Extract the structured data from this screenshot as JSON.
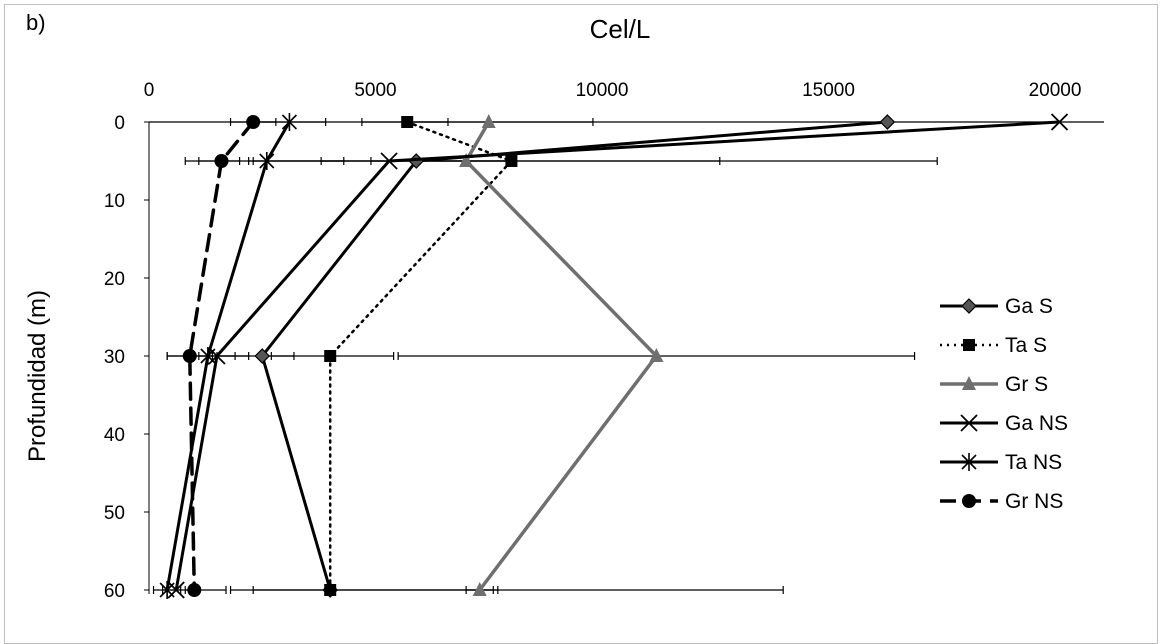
{
  "panel_label": "b)",
  "chart_data": {
    "type": "line",
    "xlabel": "Cel/L",
    "ylabel": "Profundidad (m)",
    "x_axis_position": "top",
    "y_axis_reversed": true,
    "xlim": [
      0,
      21000
    ],
    "ylim": [
      0,
      60
    ],
    "x_ticks": [
      0,
      5000,
      10000,
      15000,
      20000
    ],
    "y_ticks": [
      0,
      10,
      20,
      30,
      40,
      50,
      60
    ],
    "legend_position": "right",
    "error_bars": true,
    "series": [
      {
        "name": "Ga S",
        "color": "#000000",
        "dash": "solid",
        "marker": "diamond",
        "width": 3,
        "points": [
          {
            "x": 16300,
            "y": 0
          },
          {
            "x": 5900,
            "y": 5
          },
          {
            "x": 2500,
            "y": 30
          },
          {
            "x": 4000,
            "y": 60
          }
        ],
        "errors": [
          null,
          [
            4900,
            12600
          ],
          [
            1500,
            3200
          ],
          [
            1800,
            14000
          ]
        ]
      },
      {
        "name": "Ta S",
        "color": "#000000",
        "dash": "dotted",
        "marker": "square",
        "width": 2.5,
        "points": [
          {
            "x": 5700,
            "y": 0
          },
          {
            "x": 8000,
            "y": 5
          },
          {
            "x": 4000,
            "y": 30
          },
          {
            "x": 4000,
            "y": 60
          }
        ],
        "errors": [
          [
            4700,
            6600
          ],
          [
            2300,
            17400
          ],
          [
            2700,
            5400
          ],
          [
            2300,
            7700
          ]
        ]
      },
      {
        "name": "Gr S",
        "color": "#6f6f6f",
        "dash": "solid",
        "marker": "triangle",
        "width": 3.5,
        "points": [
          {
            "x": 7500,
            "y": 0
          },
          {
            "x": 7000,
            "y": 5
          },
          {
            "x": 11200,
            "y": 30
          },
          {
            "x": 7300,
            "y": 60
          }
        ],
        "errors": [
          [
            5700,
            9800
          ],
          [
            3800,
            8100
          ],
          [
            5500,
            16900
          ],
          [
            7000,
            7600
          ]
        ]
      },
      {
        "name": "Ga NS",
        "color": "#000000",
        "dash": "solid",
        "marker": "x",
        "width": 3,
        "points": [
          {
            "x": 20100,
            "y": 0
          },
          {
            "x": 5300,
            "y": 5
          },
          {
            "x": 1500,
            "y": 30
          },
          {
            "x": 600,
            "y": 60
          }
        ],
        "errors": [
          null,
          [
            2200,
            8100
          ],
          [
            1100,
            1900
          ],
          [
            300,
            900
          ]
        ]
      },
      {
        "name": "Ta NS",
        "color": "#000000",
        "dash": "solid",
        "marker": "asterisk",
        "width": 3,
        "points": [
          {
            "x": 3100,
            "y": 0
          },
          {
            "x": 2600,
            "y": 5
          },
          {
            "x": 1300,
            "y": 30
          },
          {
            "x": 400,
            "y": 60
          }
        ],
        "errors": [
          [
            2300,
            3900
          ],
          [
            800,
            4300
          ],
          [
            400,
            2200
          ],
          [
            100,
            700
          ]
        ]
      },
      {
        "name": "Gr NS",
        "color": "#000000",
        "dash": "dashed",
        "marker": "circle",
        "width": 3.5,
        "points": [
          {
            "x": 2300,
            "y": 0
          },
          {
            "x": 1600,
            "y": 5
          },
          {
            "x": 900,
            "y": 30
          },
          {
            "x": 1000,
            "y": 60
          }
        ],
        "errors": [
          [
            1800,
            2800
          ],
          [
            1100,
            2000
          ],
          [
            400,
            1400
          ],
          [
            800,
            1700
          ]
        ]
      }
    ]
  }
}
